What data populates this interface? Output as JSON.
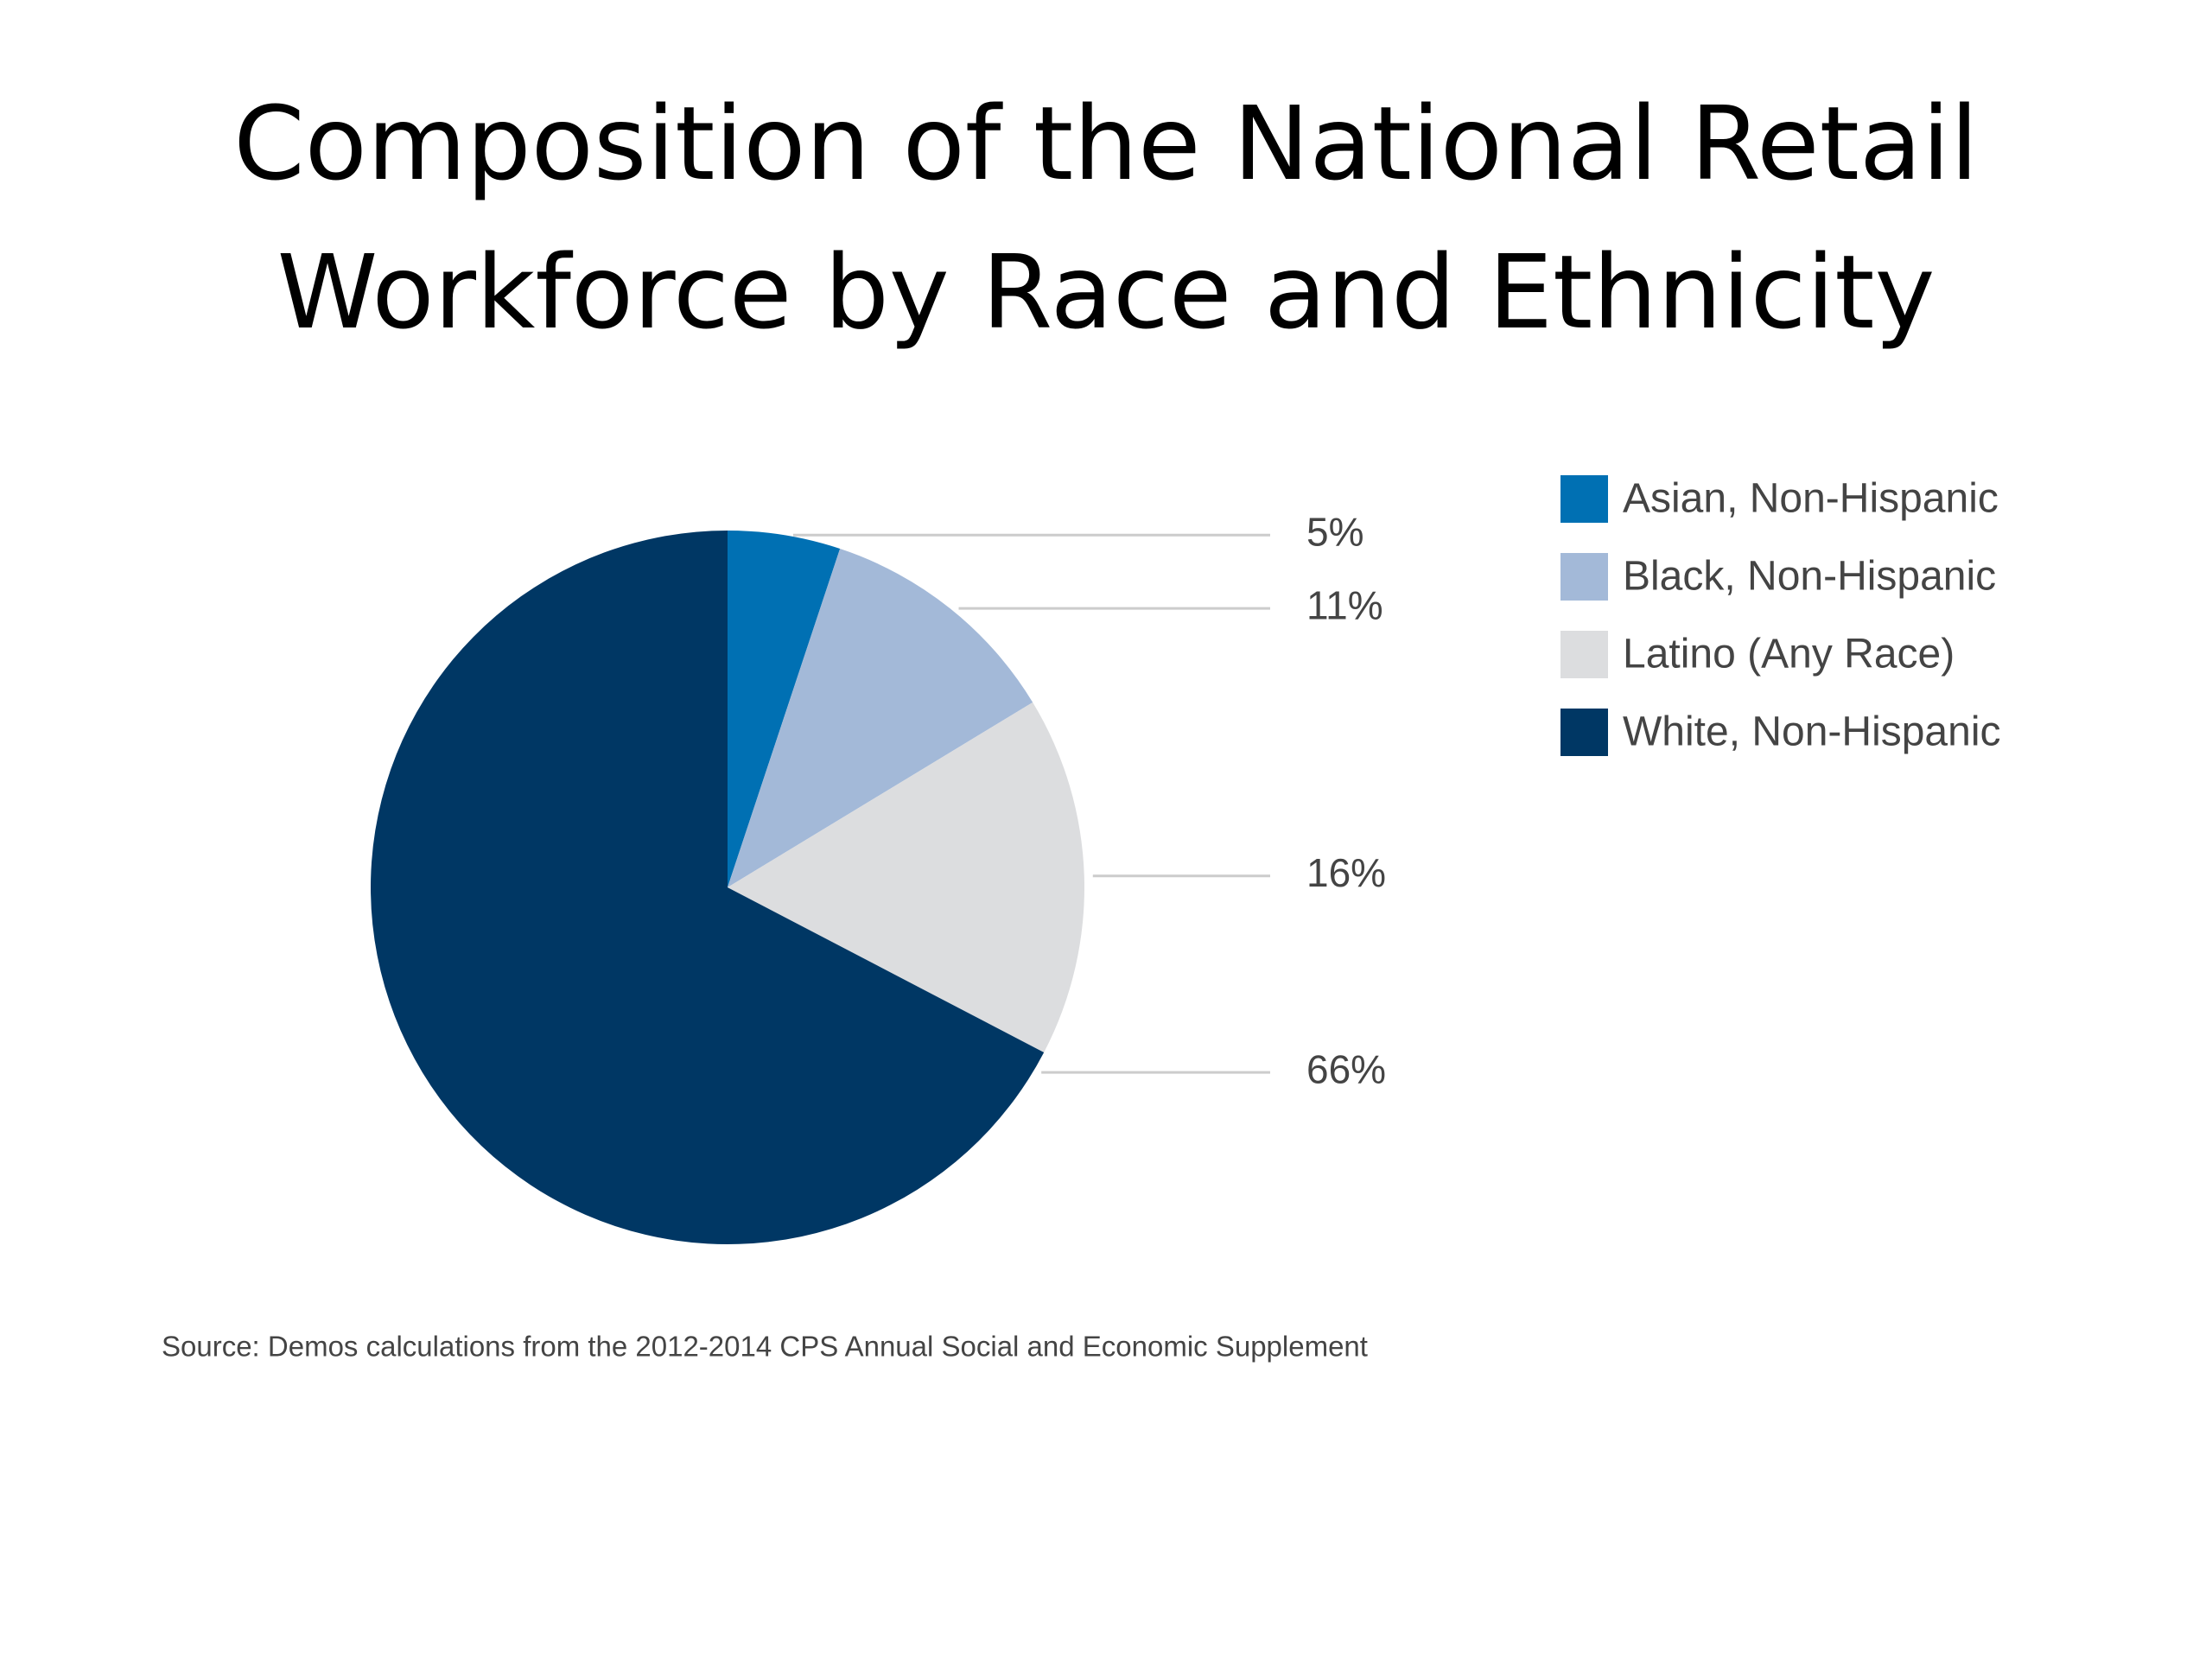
{
  "chart_data": {
    "type": "pie",
    "title": "Composition of the National Retail Workforce by Race and Ethnicity",
    "categories": [
      "Asian, Non-Hispanic",
      "Black, Non-Hispanic",
      "Latino (Any Race)",
      "White, Non-Hispanic"
    ],
    "values": [
      5,
      11,
      16,
      66
    ],
    "value_labels": [
      "5%",
      "11%",
      "16%",
      "66%"
    ],
    "colors": [
      "#0070b3",
      "#a3b9d8",
      "#dcdddf",
      "#003764"
    ],
    "legend": "right",
    "source": "Source: Demos calculations from the 2012-2014 CPS Annual Social and Economic Supplement"
  }
}
